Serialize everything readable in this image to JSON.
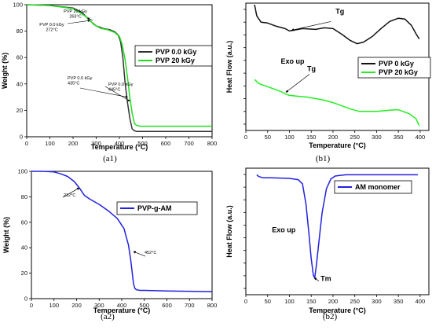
{
  "chart_data": [
    {
      "id": "a1",
      "type": "line",
      "caption": "(a1)",
      "xlabel": "Temperature (°C)",
      "ylabel": "Weight (%)",
      "xlim": [
        0,
        800
      ],
      "ylim": [
        0,
        100
      ],
      "xticks": [
        "0",
        "100",
        "200",
        "300",
        "400",
        "500",
        "600",
        "700",
        "800"
      ],
      "yticks": [
        "0",
        "20",
        "40",
        "60",
        "80",
        "100"
      ],
      "legend": "right",
      "series": [
        {
          "name": "PVP 0.0 kGy",
          "color": "#333333",
          "x": [
            0,
            100,
            200,
            240,
            272,
            300,
            330,
            360,
            380,
            395,
            405,
            415,
            425,
            435,
            445,
            455,
            465,
            475,
            490,
            550,
            650,
            800
          ],
          "y": [
            100,
            99.4,
            97.5,
            94,
            88,
            84,
            82,
            81,
            79.5,
            77,
            72,
            60,
            40,
            26,
            14,
            6,
            4.5,
            4,
            4,
            4,
            4,
            4
          ]
        },
        {
          "name": "PVP 20 kGy",
          "color": "#22dd22",
          "x": [
            0,
            100,
            200,
            230,
            263,
            290,
            320,
            350,
            380,
            400,
            412,
            425,
            435,
            445,
            455,
            465,
            475,
            490,
            520,
            600,
            800
          ],
          "y": [
            100,
            99.4,
            97,
            94,
            90,
            85,
            82,
            81,
            79,
            76,
            70,
            58,
            45,
            30,
            18,
            10,
            8.5,
            8,
            8,
            8,
            8
          ]
        }
      ],
      "annotations": [
        {
          "lines": [
            "PVP 20 kGy",
            "263°C"
          ],
          "x": 263,
          "y": 90
        },
        {
          "lines": [
            "PVP 0.0 kGy",
            "272°C"
          ],
          "x": 272,
          "y": 88
        },
        {
          "lines": [
            "PVP 0.0 kGy",
            "435°C"
          ],
          "x": 435,
          "y": 30
        },
        {
          "lines": [
            "PVP 0.0 kGy",
            "445°C"
          ],
          "x": 445,
          "y": 27
        }
      ]
    },
    {
      "id": "b1",
      "type": "line",
      "caption": "(b1)",
      "xlabel": "Temperature (°C)",
      "ylabel": "Heat Flow (a.u.)",
      "xlim": [
        0,
        420
      ],
      "xticks": [
        "0",
        "50",
        "100",
        "150",
        "200",
        "250",
        "300",
        "350",
        "400"
      ],
      "legend": "right",
      "series": [
        {
          "name": "PVP 0 kGy",
          "color": "#111111",
          "x": [
            20,
            25,
            35,
            50,
            70,
            90,
            100,
            110,
            130,
            160,
            180,
            200,
            220,
            240,
            255,
            270,
            290,
            310,
            330,
            350,
            365,
            380,
            390,
            398
          ],
          "y": [
            9.9,
            9.2,
            8.8,
            8.75,
            8.55,
            8.4,
            8.25,
            8.3,
            8.4,
            8.35,
            8.45,
            8.4,
            8.05,
            7.65,
            7.45,
            7.55,
            7.9,
            8.4,
            8.85,
            9.05,
            9.0,
            8.6,
            8.1,
            7.75
          ]
        },
        {
          "name": "PVP 20 kGy",
          "color": "#22ee22",
          "x": [
            20,
            30,
            45,
            60,
            80,
            90,
            100,
            120,
            140,
            150,
            160,
            180,
            200,
            220,
            240,
            260,
            280,
            300,
            320,
            340,
            350,
            360,
            375,
            390,
            398
          ],
          "y": [
            5.2,
            4.95,
            4.8,
            4.65,
            4.45,
            4.3,
            4.2,
            4.15,
            4.1,
            4.05,
            4.0,
            3.9,
            3.75,
            3.55,
            3.35,
            3.2,
            3.2,
            3.2,
            3.25,
            3.3,
            3.3,
            3.2,
            3.05,
            2.75,
            2.3
          ]
        }
      ],
      "annotations": [
        {
          "text": "Tg",
          "x": 105,
          "y": 8.3
        },
        {
          "text": "Exo up",
          "x": 55,
          "y": 6.2
        },
        {
          "text": "Tg",
          "x": 92,
          "y": 4.4
        }
      ],
      "ylim": [
        2,
        10
      ]
    },
    {
      "id": "a2",
      "type": "line",
      "caption": "(a2)",
      "xlabel": "Temperature (°C)",
      "ylabel": "Weight (%)",
      "xlim": [
        0,
        800
      ],
      "ylim": [
        0,
        100
      ],
      "xticks": [
        "0",
        "100",
        "200",
        "300",
        "400",
        "500",
        "600",
        "700",
        "800"
      ],
      "yticks": [
        "0",
        "20",
        "40",
        "60",
        "80",
        "100"
      ],
      "legend": "right",
      "series": [
        {
          "name": "PVP-g-AM",
          "color": "#2222dd",
          "x": [
            0,
            50,
            100,
            130,
            160,
            190,
            212,
            235,
            260,
            300,
            340,
            380,
            410,
            430,
            440,
            448,
            452,
            458,
            465,
            480,
            500,
            600,
            800
          ],
          "y": [
            100,
            100,
            99.5,
            98,
            96,
            92,
            87,
            81,
            78,
            74,
            69,
            63,
            55,
            42,
            30,
            18,
            12,
            8,
            7,
            6.5,
            6.5,
            6,
            5.5
          ]
        }
      ],
      "annotations": [
        {
          "text": "212°C",
          "x": 212,
          "y": 87
        },
        {
          "text": "452°C",
          "x": 452,
          "y": 37
        }
      ]
    },
    {
      "id": "b2",
      "type": "line",
      "caption": "(b2)",
      "xlabel": "Temperature (°C)",
      "ylabel": "Heat Flow (a.u.)",
      "xlim": [
        0,
        420
      ],
      "xticks": [
        "0",
        "50",
        "100",
        "150",
        "200",
        "250",
        "300",
        "350",
        "400"
      ],
      "legend": "right",
      "series": [
        {
          "name": "AM monomer",
          "color": "#2222dd",
          "x": [
            25,
            30,
            40,
            60,
            100,
            120,
            130,
            138,
            145,
            150,
            155,
            158,
            162,
            168,
            175,
            185,
            195,
            205,
            215,
            230,
            260,
            300,
            350,
            395
          ],
          "y": [
            9.95,
            9.8,
            9.7,
            9.7,
            9.65,
            9.55,
            9.2,
            7.5,
            5,
            3,
            1.6,
            1.4,
            2.5,
            4.5,
            6.8,
            8.8,
            9.6,
            9.85,
            9.9,
            9.95,
            9.95,
            9.95,
            9.95,
            9.95
          ]
        }
      ],
      "annotations": [
        {
          "text": "Exo up",
          "x": 60,
          "y": 5.2
        },
        {
          "text": "Tm",
          "x": 157,
          "y": 1.4
        }
      ],
      "ylim": [
        0,
        10.5
      ]
    }
  ]
}
